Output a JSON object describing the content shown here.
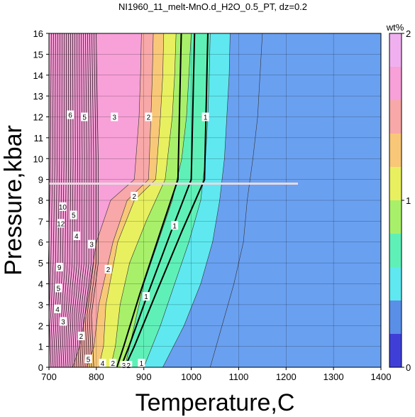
{
  "chart_data": {
    "type": "heatmap",
    "title": "NI1960_11_melt-MnO.d_H2O_0.5_PT, dz=0.2",
    "xlabel": "Temperature,C",
    "ylabel": "Pressure,kbar",
    "xlim": [
      700,
      1400
    ],
    "ylim": [
      0,
      16
    ],
    "xticks": [
      700,
      800,
      900,
      1000,
      1100,
      1200,
      1300,
      1400
    ],
    "yticks": [
      0,
      1,
      2,
      3,
      4,
      5,
      6,
      7,
      8,
      9,
      10,
      11,
      12,
      13,
      14,
      15,
      16
    ],
    "grid": true,
    "colorbar": {
      "label": "wt%",
      "range": [
        0,
        2
      ],
      "ticks": [
        0,
        1,
        2
      ],
      "colors": [
        "#3f3fd8",
        "#5a8fe8",
        "#5fe8f0",
        "#5ff0b8",
        "#a8f06a",
        "#e8f060",
        "#f8c878",
        "#f8a8a8",
        "#f8a0d8",
        "#f0b0f0"
      ]
    },
    "bands": [
      {
        "level": 0.4,
        "color": "#6aa0f0",
        "boundary": [
          [
            1040,
            0
          ],
          [
            1065,
            2
          ],
          [
            1090,
            4
          ],
          [
            1110,
            6
          ],
          [
            1118,
            8
          ],
          [
            1130,
            10
          ],
          [
            1140,
            12
          ],
          [
            1145,
            14
          ],
          [
            1150,
            16
          ]
        ]
      },
      {
        "level": 0.6,
        "color": "#5fe8f0",
        "boundary": [
          [
            940,
            0
          ],
          [
            985,
            2
          ],
          [
            1020,
            4
          ],
          [
            1045,
            6
          ],
          [
            1060,
            8
          ],
          [
            1070,
            10
          ],
          [
            1075,
            12
          ],
          [
            1080,
            14
          ],
          [
            1082,
            16
          ]
        ]
      },
      {
        "level": 0.8,
        "color": "#5ff0b8",
        "boundary": [
          [
            900,
            0
          ],
          [
            935,
            2
          ],
          [
            965,
            4
          ],
          [
            995,
            6
          ],
          [
            1020,
            8
          ],
          [
            1030,
            10
          ],
          [
            1035,
            12
          ],
          [
            1038,
            14
          ],
          [
            1040,
            16
          ]
        ]
      },
      {
        "level": 1.0,
        "color": "#a8f06a",
        "boundary": [
          [
            860,
            0
          ],
          [
            880,
            2
          ],
          [
            900,
            4
          ],
          [
            930,
            6
          ],
          [
            960,
            8
          ],
          [
            980,
            10
          ],
          [
            990,
            12
          ],
          [
            995,
            14
          ],
          [
            1000,
            16
          ]
        ]
      },
      {
        "level": 1.2,
        "color": "#e8f060",
        "boundary": [
          [
            830,
            0
          ],
          [
            840,
            1
          ],
          [
            850,
            3
          ],
          [
            870,
            5
          ],
          [
            905,
            7
          ],
          [
            945,
            9
          ],
          [
            960,
            12
          ],
          [
            965,
            14
          ],
          [
            968,
            16
          ]
        ]
      },
      {
        "level": 1.4,
        "color": "#f8c878",
        "boundary": [
          [
            805,
            0
          ],
          [
            815,
            1
          ],
          [
            820,
            3
          ],
          [
            845,
            6
          ],
          [
            880,
            8
          ],
          [
            925,
            9
          ],
          [
            935,
            12
          ],
          [
            940,
            14
          ],
          [
            942,
            16
          ]
        ]
      },
      {
        "level": 1.6,
        "color": "#f8a8a8",
        "boundary": [
          [
            780,
            0
          ],
          [
            795,
            1
          ],
          [
            805,
            3
          ],
          [
            835,
            6
          ],
          [
            865,
            8
          ],
          [
            910,
            9
          ],
          [
            915,
            12
          ],
          [
            918,
            14
          ],
          [
            920,
            16
          ]
        ]
      },
      {
        "level": 1.8,
        "color": "#f8a0d8",
        "boundary": [
          [
            750,
            0
          ],
          [
            765,
            1
          ],
          [
            780,
            3
          ],
          [
            800,
            6
          ],
          [
            830,
            8
          ],
          [
            880,
            9
          ],
          [
            890,
            12
          ],
          [
            893,
            14
          ],
          [
            895,
            16
          ]
        ]
      }
    ],
    "contour_labels": [
      {
        "text": "1",
        "x": 1030,
        "y": 12.0
      },
      {
        "text": "1",
        "x": 965,
        "y": 6.8
      },
      {
        "text": "1",
        "x": 905,
        "y": 3.4
      },
      {
        "text": "1",
        "x": 895,
        "y": 0.2
      },
      {
        "text": "2",
        "x": 910,
        "y": 12.0
      },
      {
        "text": "2",
        "x": 880,
        "y": 8.2
      },
      {
        "text": "2",
        "x": 825,
        "y": 4.7
      },
      {
        "text": "2",
        "x": 768,
        "y": 1.5
      },
      {
        "text": "3",
        "x": 838,
        "y": 12.0
      },
      {
        "text": "3",
        "x": 790,
        "y": 5.9
      },
      {
        "text": "3",
        "x": 730,
        "y": 2.2
      },
      {
        "text": "3",
        "x": 858,
        "y": 0.1
      },
      {
        "text": "2",
        "x": 868,
        "y": 0.1
      },
      {
        "text": "4",
        "x": 758,
        "y": 6.3
      },
      {
        "text": "4",
        "x": 718,
        "y": 2.8
      },
      {
        "text": "5",
        "x": 775,
        "y": 12.0
      },
      {
        "text": "5",
        "x": 752,
        "y": 7.3
      },
      {
        "text": "12",
        "x": 725,
        "y": 6.9
      },
      {
        "text": "10",
        "x": 729,
        "y": 7.7
      },
      {
        "text": "9",
        "x": 722,
        "y": 4.8
      },
      {
        "text": "5",
        "x": 720,
        "y": 3.8
      },
      {
        "text": "6",
        "x": 745,
        "y": 12.1
      },
      {
        "text": "5",
        "x": 783,
        "y": 0.4
      },
      {
        "text": "4",
        "x": 813,
        "y": 0.2
      },
      {
        "text": "2",
        "x": 835,
        "y": 0.2
      },
      {
        "text": "1",
        "x": 1,
        "y": 0
      }
    ],
    "marker_line": {
      "y": 8.8,
      "x_start": 700,
      "x_end": 1225,
      "color": "#e8d8e0"
    }
  }
}
